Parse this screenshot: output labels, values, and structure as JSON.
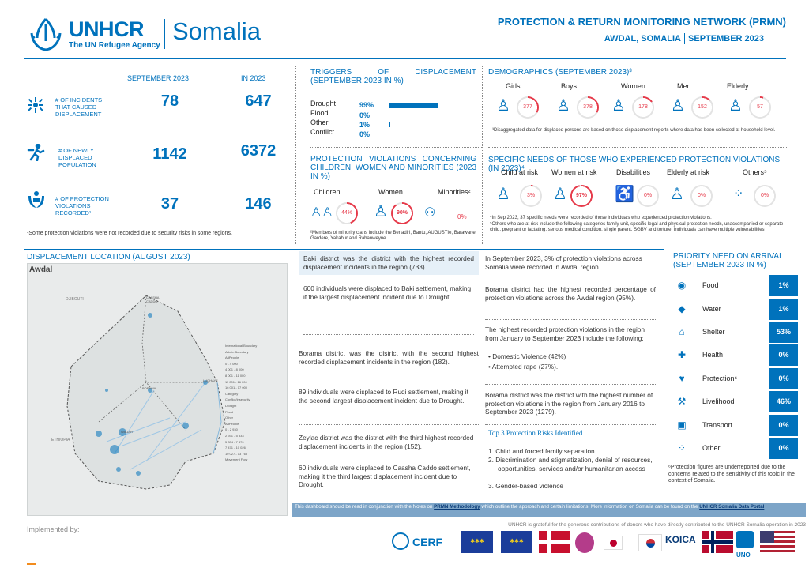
{
  "header": {
    "logo_text": "UNHCR",
    "logo_tagline": "The UN Refugee Agency",
    "country": "Somalia",
    "title": "PROTECTION & RETURN MONITORING NETWORK (PRMN)",
    "location": "AWDAL, SOMALIA",
    "period": "SEPTEMBER 2023"
  },
  "stats": {
    "col1": "SEPTEMBER 2023",
    "col2": "IN 2023",
    "rows": [
      {
        "label": "# OF INCIDENTS THAT CAUSED DISPLACEMENT",
        "v1": "78",
        "v2": "647",
        "icon": "burst-icon"
      },
      {
        "label": "# OF NEWLY DISPLACED POPULATION",
        "v1": "1142",
        "v2": "6372",
        "icon": "running-person-icon"
      },
      {
        "label": "# OF PROTECTION VIOLATIONS RECORDED¹",
        "v1": "37",
        "v2": "146",
        "icon": "protection-hands-icon"
      }
    ],
    "footnote": "¹Some protection violations were not recorded due to security risks in some regions."
  },
  "triggers": {
    "title": "TRIGGERS OF DISPLACEMENT (SEPTEMBER 2023 IN %)",
    "items": [
      {
        "label": "Drought",
        "value": "99%",
        "pct": 99
      },
      {
        "label": "Flood",
        "value": "0%",
        "pct": 0
      },
      {
        "label": "Other",
        "value": "1%",
        "pct": 1
      },
      {
        "label": "Conflict",
        "value": "0%",
        "pct": 0
      }
    ]
  },
  "demographics": {
    "title": "DEMOGRAPHICS (SEPTEMBER 2023)³",
    "groups": [
      {
        "label": "Girls",
        "value": "377",
        "pct": 33
      },
      {
        "label": "Boys",
        "value": "378",
        "pct": 33
      },
      {
        "label": "Women",
        "value": "178",
        "pct": 16
      },
      {
        "label": "Men",
        "value": "152",
        "pct": 13
      },
      {
        "label": "Elderly",
        "value": "57",
        "pct": 5
      }
    ],
    "footnote": "³Disaggregated data for displaced persons are based on those displacement reports where data has been collected at household level."
  },
  "violations": {
    "title": "PROTECTION VIOLATIONS CONCERNING CHILDREN, WOMEN AND MINORITIES (2023 IN %)",
    "groups": [
      {
        "label": "Children",
        "value": "44%",
        "pct": 44
      },
      {
        "label": "Women",
        "value": "90%",
        "pct": 90
      },
      {
        "label": "Minorities²",
        "value": "0%",
        "pct": 0
      }
    ],
    "footnote": "²Members of minority clans include the Benadiri, Bantu, AUGUSTIe, Barawane, Gardere, Yakabur and Rahanweyne."
  },
  "needs": {
    "title": "SPECIFIC NEEDS OF THOSE WHO EXPERIENCED PROTECTION VIOLATIONS (IN 2023)⁴",
    "groups": [
      {
        "label": "Child at risk",
        "value": "3%",
        "pct": 3
      },
      {
        "label": "Women at risk",
        "value": "97%",
        "pct": 97
      },
      {
        "label": "Disabilities",
        "value": "0%",
        "pct": 0
      },
      {
        "label": "Elderly at risk",
        "value": "0%",
        "pct": 0
      },
      {
        "label": "Others⁵",
        "value": "0%",
        "pct": 0
      }
    ],
    "footnote1": "⁴In Sep 2023, 37 specific needs were recorded of those individuals who experienced protection violations.",
    "footnote2": "⁵Others who are at risk include the following categories family unit, specific legal and physical protection needs, unaccompanied or separate child, pregnant or lactating, serious medical condition, single parent, SGBV and torture. Individuals can have multiple vulnerabilities"
  },
  "map": {
    "title": "DISPLACEMENT LOCATION (AUGUST 2023)",
    "region": "Awdal",
    "labels": [
      "DJIBOUTI",
      "ETHIOPIA",
      "CAASHA CADDO",
      "ZEYLAC",
      "BAKI",
      "BORAMA",
      "RUQI",
      "LUGHAYE",
      "WAGAR",
      "AMUD",
      "BAKI",
      "SHEIKH SHARE"
    ],
    "legend": [
      "International Boundary",
      "Admin Boundary",
      "AdPeople",
      "0 - 4 000",
      "4 001 - 8 000",
      "8 001 - 11 000",
      "11 001 - 16 000",
      "16 001 - 17 000",
      "Category",
      "Conflict/Insecurity",
      "Drought",
      "Flood",
      "Other",
      "AdPeople",
      "0 - 2 930",
      "2 931 - 5 333",
      "5 334 - 7 470",
      "7 471 - 10 026",
      "10 027 - 13 763",
      "Movement Flow"
    ]
  },
  "narrative1": {
    "p1": "Baki district was the district with the highest recorded displacement incidents in the region (733).",
    "p2": "600 individuals were displaced to Baki settlement, making it the largest displacement incident due to Drought.",
    "p3": "Borama district was the district with the second highest recorded displacement incidents in the region (182).",
    "p4": "89 individuals were displaced to Ruqi settlement, making it the second largest displacement incident due to Drought.",
    "p5": "Zeylac district was the district with the third highest recorded displacement incidents in the region (152).",
    "p6": "60 individuals were displaced to Caasha Caddo settlement, making it the third largest displacement incident due to Drought."
  },
  "narrative2": {
    "p1": "In September 2023, 3% of protection violations across Somalia were recorded in Awdal region.",
    "p2": "Borama district had the highest recorded percentage of protection violations across the Awdal region (95%).",
    "p3": "The highest recorded protection violations in the region from January to September 2023 include the following:",
    "bullets": [
      "Domestic Violence (42%)",
      "Attempted rape (27%)."
    ],
    "p4": "Borama district was the district with the highest number of protection violations in the region from January 2016 to September 2023 (1279).",
    "risks_title": "Top 3 Protection Risks Identified",
    "risks": [
      "Child and forced family separation",
      "Discrimination and stigmatization, denial of resources, opportunities, services and/or humanitarian access",
      "Gender-based violence"
    ]
  },
  "priority": {
    "title": "PRIORITY NEED ON ARRIVAL (SEPTEMBER 2023 IN %)",
    "items": [
      {
        "label": "Food",
        "value": "1%",
        "icon": "food-icon"
      },
      {
        "label": "Water",
        "value": "1%",
        "icon": "water-icon"
      },
      {
        "label": "Shelter",
        "value": "53%",
        "icon": "shelter-icon"
      },
      {
        "label": "Health",
        "value": "0%",
        "icon": "health-icon"
      },
      {
        "label": "Protection⁶",
        "value": "0%",
        "icon": "protection-icon"
      },
      {
        "label": "Livelihood",
        "value": "46%",
        "icon": "livelihood-icon"
      },
      {
        "label": "Transport",
        "value": "0%",
        "icon": "transport-icon"
      },
      {
        "label": "Other",
        "value": "0%",
        "icon": "other-icon"
      }
    ],
    "footnote": "⁶Protection figures are underreported due to the concerns related to the sensitivity of this topic in the context of Somalia."
  },
  "footer": {
    "disclaimer_a": "This dashboard should be read in conjunction with the Notes on",
    "disclaimer_link1": "PRMN Methodology",
    "disclaimer_b": "which outline the approach and certain limitations. More information on Somalia can be found on the",
    "disclaimer_link2": "UNHCR Somalia Data Portal",
    "implemented": "Implemented by:",
    "donors_text": "UNHCR is grateful for the generous contributions of donors who have directly contributed to the UNHCR Somalia operation in 2023",
    "donor_cerf": "CERF",
    "donor_koica": "KOICA",
    "donor_uno": "UNO"
  },
  "colors": {
    "accent": "#0072bc",
    "red": "#e63a4a"
  }
}
